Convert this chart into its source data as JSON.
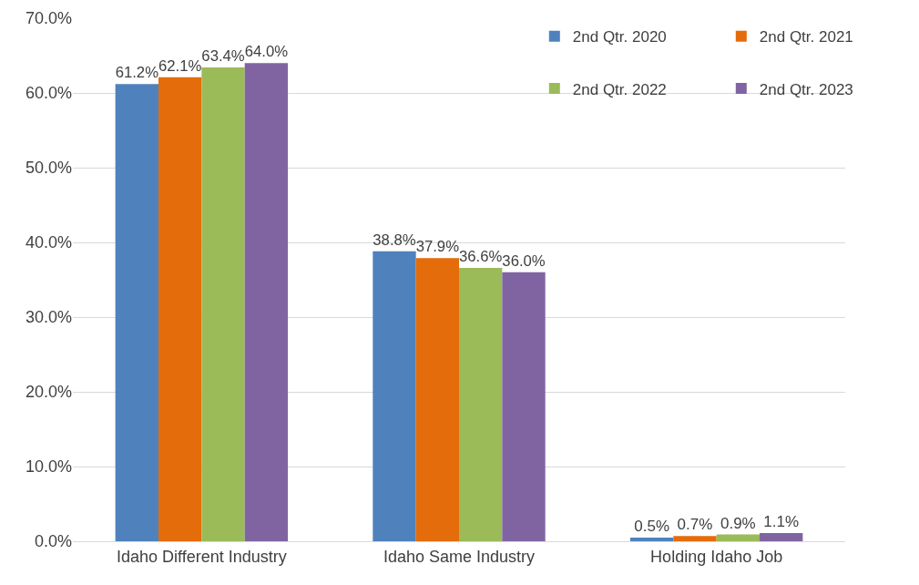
{
  "chart_data": {
    "type": "bar",
    "categories": [
      "Idaho Different Industry",
      "Idaho Same Industry",
      "Holding Idaho Job"
    ],
    "series": [
      {
        "name": "2nd Qtr. 2020",
        "color": "#4f81bd",
        "values": [
          61.2,
          38.8,
          0.5
        ],
        "value_labels": [
          "61.2%",
          "38.8%",
          "0.5%"
        ]
      },
      {
        "name": "2nd Qtr. 2021",
        "color": "#e46c0a",
        "values": [
          62.1,
          37.9,
          0.7
        ],
        "value_labels": [
          "62.1%",
          "37.9%",
          "0.7%"
        ]
      },
      {
        "name": "2nd Qtr. 2022",
        "color": "#9bbb59",
        "values": [
          63.4,
          36.6,
          0.9
        ],
        "value_labels": [
          "63.4%",
          "36.6%",
          "0.9%"
        ]
      },
      {
        "name": "2nd Qtr. 2023",
        "color": "#8064a2",
        "values": [
          64.0,
          36.0,
          1.1
        ],
        "value_labels": [
          "64.0%",
          "36.0%",
          "1.1%"
        ]
      }
    ],
    "ylim": [
      0,
      70
    ],
    "yticks": [
      {
        "value": 0,
        "label": "0.0%"
      },
      {
        "value": 10,
        "label": "10.0%"
      },
      {
        "value": 20,
        "label": "20.0%"
      },
      {
        "value": 30,
        "label": "30.0%"
      },
      {
        "value": 40,
        "label": "40.0%"
      },
      {
        "value": 50,
        "label": "50.0%"
      },
      {
        "value": 60,
        "label": "60.0%"
      },
      {
        "value": 70,
        "label": "70.0%"
      }
    ],
    "grid": "y",
    "legend": "top right"
  }
}
